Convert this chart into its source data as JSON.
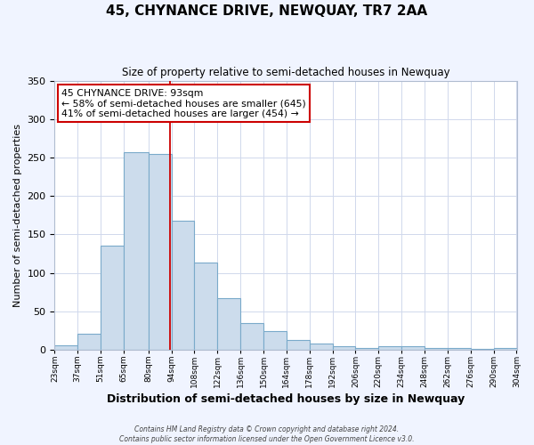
{
  "title": "45, CHYNANCE DRIVE, NEWQUAY, TR7 2AA",
  "subtitle": "Size of property relative to semi-detached houses in Newquay",
  "xlabel": "Distribution of semi-detached houses by size in Newquay",
  "ylabel": "Number of semi-detached properties",
  "bin_edges": [
    23,
    37,
    51,
    65,
    80,
    94,
    108,
    122,
    136,
    150,
    164,
    178,
    192,
    206,
    220,
    234,
    248,
    262,
    276,
    290,
    304
  ],
  "bar_heights": [
    6,
    21,
    136,
    257,
    255,
    168,
    113,
    67,
    35,
    24,
    13,
    8,
    5,
    3,
    5,
    5,
    3,
    2,
    1,
    2
  ],
  "bar_color": "#ccdcec",
  "bar_edge_color": "#7aaaca",
  "property_line_x": 93,
  "annotation_title": "45 CHYNANCE DRIVE: 93sqm",
  "annotation_line1": "← 58% of semi-detached houses are smaller (645)",
  "annotation_line2": "41% of semi-detached houses are larger (454) →",
  "annotation_box_color": "#ffffff",
  "annotation_box_edge_color": "#cc0000",
  "ylim": [
    0,
    350
  ],
  "yticks": [
    0,
    50,
    100,
    150,
    200,
    250,
    300,
    350
  ],
  "tick_labels": [
    "23sqm",
    "37sqm",
    "51sqm",
    "65sqm",
    "80sqm",
    "94sqm",
    "108sqm",
    "122sqm",
    "136sqm",
    "150sqm",
    "164sqm",
    "178sqm",
    "192sqm",
    "206sqm",
    "220sqm",
    "234sqm",
    "248sqm",
    "262sqm",
    "276sqm",
    "290sqm",
    "304sqm"
  ],
  "footer_line1": "Contains HM Land Registry data © Crown copyright and database right 2024.",
  "footer_line2": "Contains public sector information licensed under the Open Government Licence v3.0.",
  "grid_color": "#d0d8ec",
  "background_color": "#ffffff",
  "fig_background_color": "#f0f4ff"
}
